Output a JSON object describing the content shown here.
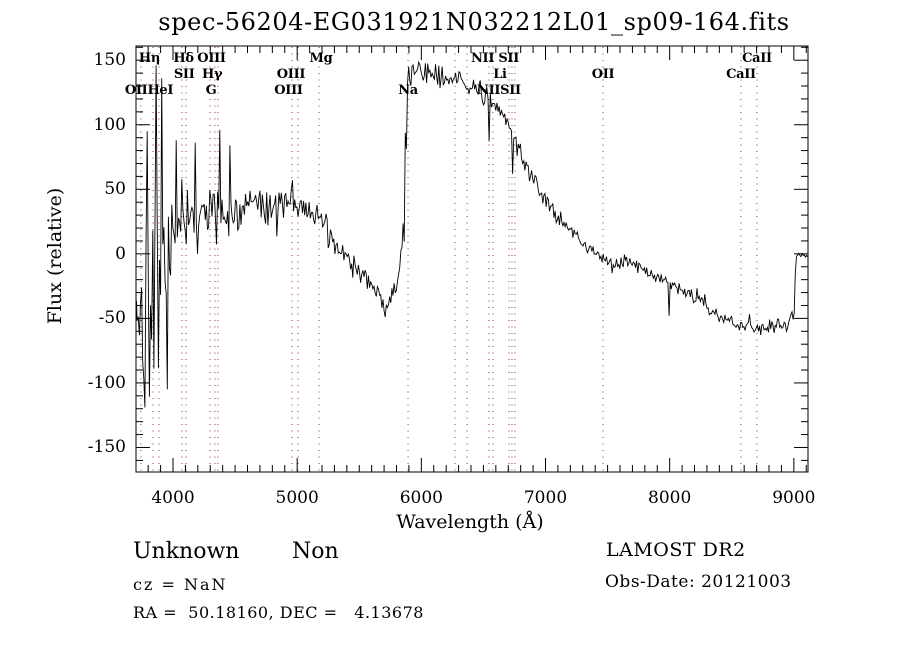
{
  "title": "spec-56204-EG031921N032212L01_sp09-164.fits",
  "colors": {
    "background": "#ffffff",
    "axis": "#000000",
    "spectrum": "#000000",
    "line_marker_dotted": "#993333",
    "text": "#000000"
  },
  "footer": {
    "class_name": "Unknown",
    "subclass": "Non",
    "cz_text": "cz = NaN",
    "radec_text": "RA =  50.18160, DEC =   4.13678",
    "survey_text": "LAMOST DR2",
    "obsdate_text": "Obs-Date: 20121003"
  },
  "chart_data": {
    "type": "line",
    "title": "spec-56204-EG031921N032212L01_sp09-164.fits",
    "xlabel": "Wavelength (Å)",
    "ylabel": "Flux (relative)",
    "xlim": [
      3702,
      9114
    ],
    "ylim": [
      -169,
      161
    ],
    "x_ticks": [
      4000,
      5000,
      6000,
      7000,
      8000,
      9000
    ],
    "x_minor_step": 100,
    "y_ticks": [
      150,
      100,
      50,
      0,
      -50,
      -100,
      -150
    ],
    "y_minor_step": 10,
    "grid": false,
    "legend": "none",
    "series_description": "Noisy stellar spectrum; envelope anchors are [wavelength_A, mean_flux, noise_amplitude]",
    "envelope": [
      [
        3702,
        -40,
        62
      ],
      [
        3740,
        -42,
        70
      ],
      [
        3780,
        -38,
        75
      ],
      [
        3820,
        -25,
        80
      ],
      [
        3860,
        -5,
        85
      ],
      [
        3900,
        -15,
        72
      ],
      [
        3945,
        -25,
        60
      ],
      [
        3990,
        0,
        48
      ],
      [
        4040,
        22,
        36
      ],
      [
        4090,
        33,
        30
      ],
      [
        4140,
        30,
        26
      ],
      [
        4200,
        27,
        22
      ],
      [
        4260,
        28,
        22
      ],
      [
        4330,
        31,
        24
      ],
      [
        4400,
        30,
        20
      ],
      [
        4500,
        33,
        18
      ],
      [
        4600,
        35,
        16
      ],
      [
        4700,
        36,
        15
      ],
      [
        4800,
        37,
        14
      ],
      [
        4900,
        40,
        13
      ],
      [
        4960,
        43,
        13
      ],
      [
        5050,
        38,
        13
      ],
      [
        5150,
        29,
        13
      ],
      [
        5250,
        15,
        12
      ],
      [
        5350,
        2,
        11
      ],
      [
        5450,
        -9,
        10
      ],
      [
        5550,
        -19,
        9
      ],
      [
        5650,
        -31,
        8
      ],
      [
        5715,
        -39,
        7
      ],
      [
        5765,
        -33,
        7
      ],
      [
        5805,
        -22,
        8
      ],
      [
        5835,
        -10,
        14
      ],
      [
        5857,
        15,
        55
      ],
      [
        5874,
        65,
        65
      ],
      [
        5888,
        125,
        25
      ],
      [
        5900,
        141,
        12
      ],
      [
        5960,
        142,
        10
      ],
      [
        6060,
        139,
        9
      ],
      [
        6160,
        136,
        9
      ],
      [
        6260,
        134,
        8
      ],
      [
        6360,
        131,
        8
      ],
      [
        6460,
        128,
        8
      ],
      [
        6520,
        123,
        10
      ],
      [
        6555,
        116,
        11
      ],
      [
        6600,
        112,
        9
      ],
      [
        6650,
        108,
        9
      ],
      [
        6695,
        103,
        9
      ],
      [
        6725,
        96,
        10
      ],
      [
        6760,
        88,
        9
      ],
      [
        6800,
        77,
        8
      ],
      [
        6850,
        66,
        7
      ],
      [
        6900,
        57,
        7
      ],
      [
        6950,
        49,
        7
      ],
      [
        7000,
        41,
        7
      ],
      [
        7060,
        33,
        6
      ],
      [
        7120,
        27,
        6
      ],
      [
        7180,
        22,
        6
      ],
      [
        7250,
        14,
        6
      ],
      [
        7320,
        7,
        6
      ],
      [
        7400,
        0,
        5
      ],
      [
        7480,
        -5,
        5
      ],
      [
        7560,
        -7,
        5
      ],
      [
        7640,
        -5,
        6
      ],
      [
        7720,
        -9,
        5
      ],
      [
        7800,
        -13,
        5
      ],
      [
        7880,
        -17,
        5
      ],
      [
        7960,
        -20,
        5
      ],
      [
        8040,
        -25,
        5
      ],
      [
        8140,
        -30,
        5
      ],
      [
        8240,
        -37,
        5
      ],
      [
        8340,
        -44,
        5
      ],
      [
        8440,
        -51,
        5
      ],
      [
        8540,
        -55,
        5
      ],
      [
        8640,
        -57,
        6
      ],
      [
        8740,
        -58,
        6
      ],
      [
        8840,
        -57,
        6
      ],
      [
        8920,
        -56,
        7
      ],
      [
        8980,
        -52,
        6
      ],
      [
        9002,
        -47,
        5
      ],
      [
        9008,
        -45,
        4
      ],
      [
        9014,
        0,
        2
      ],
      [
        9114,
        -1,
        2
      ]
    ],
    "spikes": [
      [
        3770,
        -119
      ],
      [
        3795,
        95
      ],
      [
        3862,
        146
      ],
      [
        3905,
        136
      ],
      [
        3950,
        -105
      ],
      [
        4025,
        88
      ],
      [
        4177,
        86
      ],
      [
        4378,
        96
      ],
      [
        4462,
        84
      ],
      [
        4960,
        57
      ],
      [
        5712,
        -49
      ],
      [
        6545,
        87
      ],
      [
        6735,
        62
      ],
      [
        7995,
        -48
      ]
    ],
    "spectral_line_wavelengths": [
      3742,
      3839,
      3887,
      4072,
      4105,
      4298,
      4338,
      4362,
      4958,
      5007,
      5176,
      5893,
      6271,
      6368,
      6545,
      6577,
      6706,
      6730,
      6754,
      7463,
      8574,
      8703
    ],
    "spectral_line_labels": [
      {
        "text": "Hη",
        "row": 1,
        "wavelength": 3810
      },
      {
        "text": "Hδ",
        "row": 1,
        "wavelength": 4085
      },
      {
        "text": "OIII",
        "row": 1,
        "wavelength": 4310
      },
      {
        "text": "Mg",
        "row": 1,
        "wavelength": 5192
      },
      {
        "text": "NII SII",
        "row": 1,
        "wavelength": 6593
      },
      {
        "text": "CaII",
        "row": 1,
        "wavelength": 8703
      },
      {
        "text": "SII",
        "row": 2,
        "wavelength": 4090
      },
      {
        "text": "Hγ",
        "row": 2,
        "wavelength": 4315
      },
      {
        "text": "OIII",
        "row": 2,
        "wavelength": 4950
      },
      {
        "text": "Li",
        "row": 2,
        "wavelength": 6633
      },
      {
        "text": "OII",
        "row": 2,
        "wavelength": 7463
      },
      {
        "text": "CaII",
        "row": 2,
        "wavelength": 8574
      },
      {
        "text": "OIIHeI",
        "row": 3,
        "wavelength": 3807
      },
      {
        "text": "G",
        "row": 3,
        "wavelength": 4306
      },
      {
        "text": "OIII",
        "row": 3,
        "wavelength": 4930
      },
      {
        "text": "Na",
        "row": 3,
        "wavelength": 5893
      },
      {
        "text": "NIISII",
        "row": 3,
        "wavelength": 6625
      }
    ]
  }
}
